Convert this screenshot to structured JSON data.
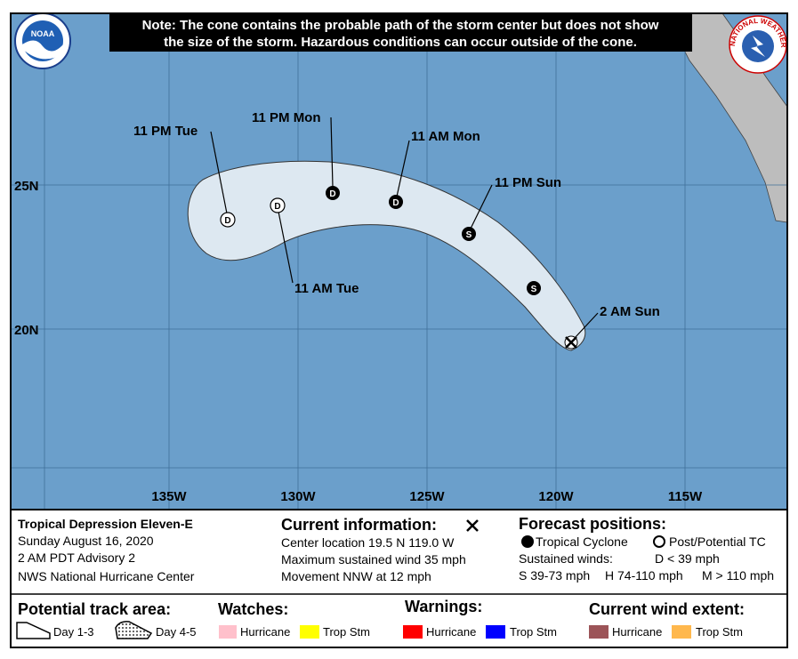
{
  "note": [
    "Note: The cone contains the probable path of the storm center but does not show",
    "the size of the storm. Hazardous conditions can occur outside of the cone."
  ],
  "logos": {
    "noaa": "NOAA",
    "nws": "NATIONAL WEATHER SERVICE"
  },
  "map": {
    "latitudes": [
      "25N",
      "20N"
    ],
    "longitudes": [
      "135W",
      "130W",
      "125W",
      "120W",
      "115W"
    ],
    "positions": [
      {
        "label": "2 AM Sun"
      },
      {
        "symbol": "S"
      },
      {
        "label": "11 PM Sun",
        "symbol": "S"
      },
      {
        "label": "11 AM Mon",
        "symbol": "D"
      },
      {
        "label": "11 PM Mon",
        "symbol": "D"
      },
      {
        "label": "11 AM Tue",
        "symbol": "D"
      },
      {
        "label": "11 PM Tue",
        "symbol": "D"
      }
    ]
  },
  "storm": {
    "name": "Tropical Depression Eleven-E",
    "date": "Sunday August 16, 2020",
    "advisory": "2 AM PDT Advisory 2",
    "source": "NWS National Hurricane Center"
  },
  "current": {
    "title": "Current information:",
    "lines": [
      "Center location 19.5 N 119.0 W",
      "Maximum sustained wind 35 mph",
      "Movement NNW at 12 mph"
    ]
  },
  "forecast": {
    "title": "Forecast positions:",
    "tropical": "Tropical Cyclone",
    "post": "Post/Potential TC",
    "winds_title": "Sustained winds:",
    "d": "D < 39 mph",
    "s": "S 39-73 mph",
    "h": "H 74-110 mph",
    "m": "M > 110 mph"
  },
  "legend": {
    "track": {
      "title": "Potential track area:",
      "day13": "Day 1-3",
      "day45": "Day 4-5"
    },
    "watches": {
      "title": "Watches:",
      "hurricane": "Hurricane",
      "storm": "Trop Stm"
    },
    "warnings": {
      "title": "Warnings:",
      "hurricane": "Hurricane",
      "storm": "Trop Stm"
    },
    "wind": {
      "title": "Current wind extent:",
      "hurricane": "Hurricane",
      "storm": "Trop Stm"
    }
  }
}
